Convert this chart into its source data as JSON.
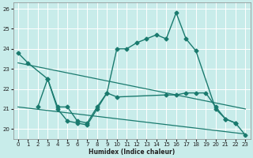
{
  "xlabel": "Humidex (Indice chaleur)",
  "xlim": [
    -0.5,
    23.5
  ],
  "ylim": [
    19.5,
    26.3
  ],
  "yticks": [
    20,
    21,
    22,
    23,
    24,
    25,
    26
  ],
  "xticks": [
    0,
    1,
    2,
    3,
    4,
    5,
    6,
    7,
    8,
    9,
    10,
    11,
    12,
    13,
    14,
    15,
    16,
    17,
    18,
    19,
    20,
    21,
    22,
    23
  ],
  "bg_color": "#c8ecea",
  "grid_color": "#ffffff",
  "line_color": "#1a7a6e",
  "series": [
    {
      "x": [
        0,
        1,
        3,
        4,
        5,
        6,
        7,
        8,
        9,
        10,
        11,
        12,
        13,
        14,
        15,
        16,
        17,
        18,
        20,
        21,
        22,
        23
      ],
      "y": [
        23.8,
        23.3,
        22.5,
        21.0,
        20.4,
        20.3,
        20.2,
        21.0,
        21.8,
        24.0,
        24.0,
        24.3,
        24.5,
        24.7,
        24.5,
        25.8,
        24.5,
        23.9,
        21.0,
        20.5,
        20.3,
        19.7
      ],
      "has_marker": true,
      "markersize": 2.5,
      "linewidth": 1.0
    },
    {
      "x": [
        2,
        3,
        4,
        5,
        6,
        7,
        8,
        9,
        10,
        15,
        16,
        17,
        18,
        19,
        20,
        21,
        22
      ],
      "y": [
        21.1,
        22.5,
        21.1,
        21.1,
        20.4,
        20.3,
        21.1,
        21.8,
        21.6,
        21.7,
        21.7,
        21.8,
        21.8,
        21.8,
        21.1,
        20.5,
        20.3
      ],
      "has_marker": true,
      "markersize": 2.5,
      "linewidth": 1.0
    },
    {
      "x": [
        0,
        23
      ],
      "y": [
        23.3,
        21.0
      ],
      "has_marker": false,
      "markersize": 0,
      "linewidth": 0.9
    },
    {
      "x": [
        0,
        23
      ],
      "y": [
        21.1,
        19.75
      ],
      "has_marker": false,
      "markersize": 0,
      "linewidth": 0.9
    }
  ]
}
